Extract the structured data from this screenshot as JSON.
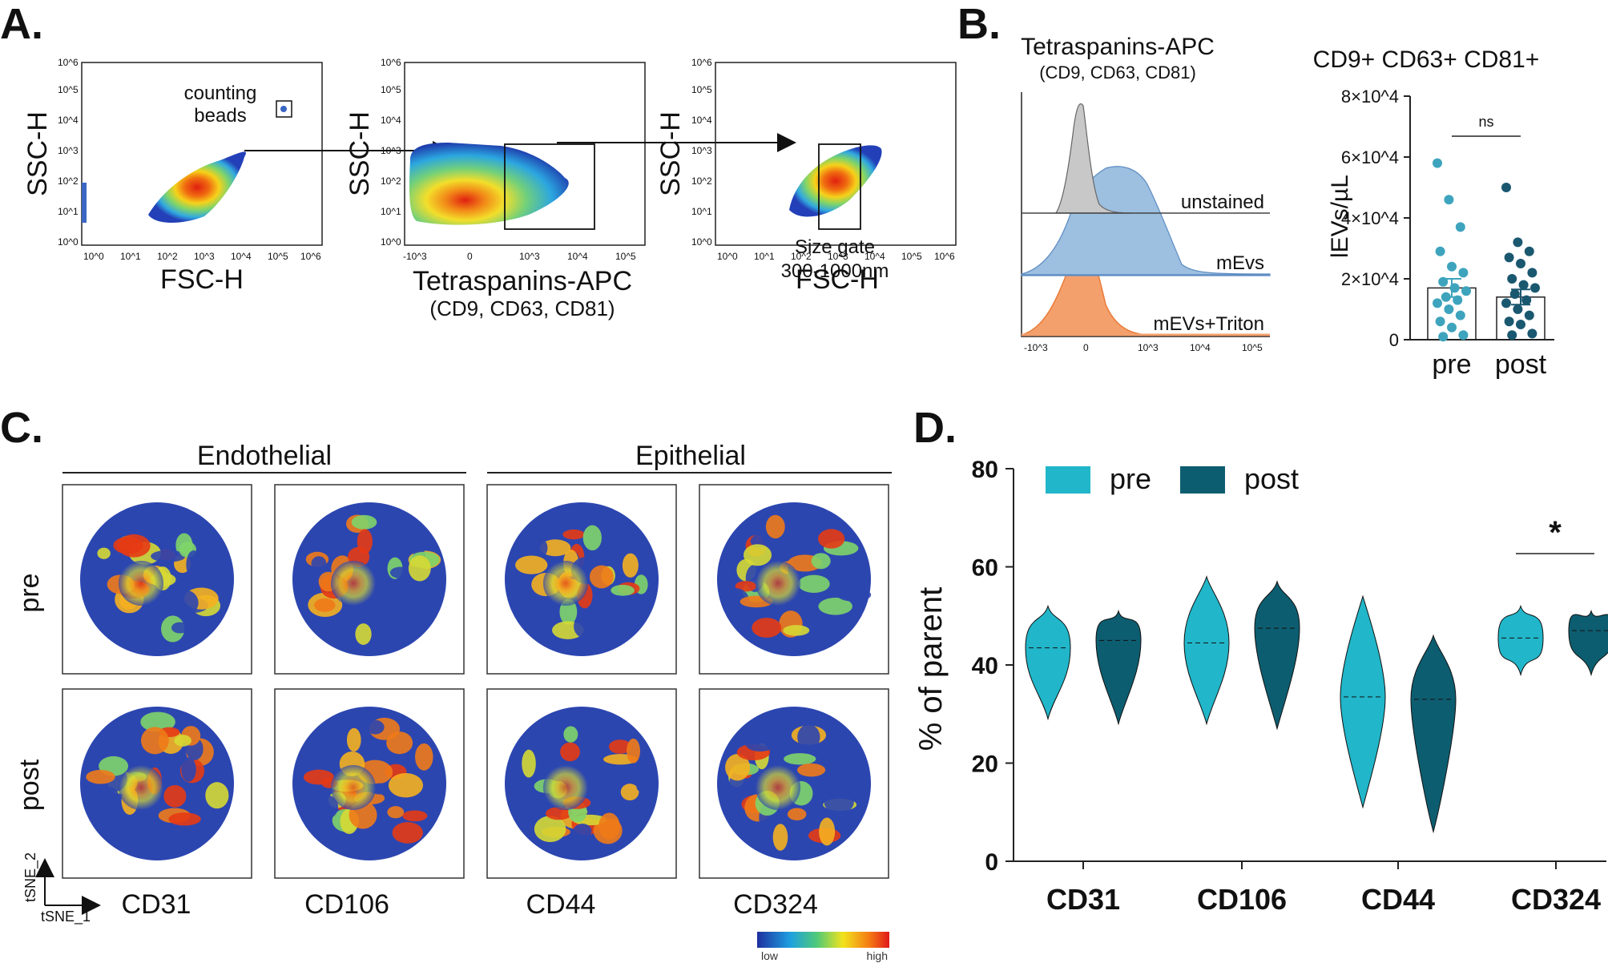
{
  "panels": {
    "A": {
      "letter": "A.",
      "plot1": {
        "xlabel": "FSC-H",
        "ylabel": "SSC-H",
        "annotation": [
          "counting",
          "beads"
        ]
      },
      "plot2": {
        "xlabel": "Tetraspanins-APC",
        "xlabel_sub": "(CD9, CD63, CD81)",
        "ylabel": "SSC-H"
      },
      "plot3": {
        "xlabel": "FSC-H",
        "ylabel": "SSC-H",
        "annotation": [
          "Size gate",
          "300-1000nm"
        ]
      },
      "log_ticks": [
        "10^0",
        "10^1",
        "10^2",
        "10^3",
        "10^4",
        "10^5",
        "10^6"
      ],
      "apc_ticks": [
        "-10^3",
        "0",
        "10^3",
        "10^4",
        "10^5"
      ]
    },
    "B": {
      "letter": "B.",
      "hist_title": "Tetraspanins-APC",
      "hist_sub": "(CD9, CD63, CD81)",
      "hist_labels": [
        "unstained",
        "mEvs",
        "mEVs+Triton"
      ],
      "hist_ticks": [
        "-10^3",
        "0",
        "10^3",
        "10^4",
        "10^5"
      ],
      "bar_title": "CD9+ CD63+ CD81+",
      "bar_ylabel": "lEVs/µL",
      "bar_yticks": [
        "0",
        "2×10^4",
        "4×10^4",
        "6×10^4",
        "8×10^4"
      ],
      "bar_sig": "ns"
    },
    "C": {
      "letter": "C.",
      "group_labels": [
        "Endothelial",
        "Epithelial"
      ],
      "row_labels": [
        "pre",
        "post"
      ],
      "markers": [
        "CD31",
        "CD106",
        "CD44",
        "CD324"
      ],
      "tsne_x": "tSNE_1",
      "tsne_y": "tSNE_2",
      "scale_low": "low",
      "scale_high": "high"
    },
    "D": {
      "letter": "D.",
      "ylabel": "% of parent",
      "sig": "*"
    }
  },
  "chart_data": [
    {
      "type": "scatter",
      "title": "",
      "xlabel": "FSC-H",
      "ylabel": "SSC-H",
      "xscale": "log",
      "xlim": [
        1,
        1000000
      ],
      "ylim": [
        1,
        1000000
      ],
      "gate": "counting beads",
      "gate_range_x": [
        50000,
        150000
      ],
      "gate_range_y": [
        200000,
        600000
      ]
    },
    {
      "type": "scatter",
      "xlabel": "Tetraspanins-APC (CD9, CD63, CD81)",
      "ylabel": "SSC-H",
      "gate_range_x": [
        600,
        50000
      ],
      "gate_range_y": [
        150,
        12000
      ]
    },
    {
      "type": "scatter",
      "xlabel": "FSC-H",
      "ylabel": "SSC-H",
      "gate": "Size gate 300-1000nm",
      "gate_range_x": [
        300,
        2000
      ],
      "gate_range_y": [
        150,
        12000
      ]
    },
    {
      "type": "area",
      "title": "Tetraspanins-APC (CD9, CD63, CD81)",
      "series": [
        {
          "name": "unstained",
          "color": "#c8c8c8",
          "peak": 0
        },
        {
          "name": "mEvs",
          "color": "#9dbfe0",
          "peak": 300
        },
        {
          "name": "mEVs+Triton",
          "color": "#f4a06c",
          "peak": 50
        }
      ]
    },
    {
      "type": "bar",
      "title": "CD9+ CD63+ CD81+",
      "ylabel": "lEVs/µL",
      "categories": [
        "pre",
        "post"
      ],
      "values": [
        17000,
        14000
      ],
      "sem": [
        3000,
        2500
      ],
      "ylim": [
        0,
        80000
      ],
      "colors": [
        "#3ea4bd",
        "#1a5870"
      ],
      "points": {
        "pre": [
          58000,
          46000,
          37000,
          29000,
          24000,
          22000,
          19000,
          17000,
          16000,
          14000,
          13000,
          12000,
          10000,
          8000,
          6000,
          4000,
          1500,
          1000
        ],
        "post": [
          50000,
          32000,
          29000,
          27000,
          25000,
          22000,
          20000,
          18000,
          17000,
          15000,
          13000,
          12000,
          10000,
          8000,
          6000,
          5000,
          2000,
          1500
        ]
      },
      "significance": "ns"
    },
    {
      "type": "heatmap",
      "title": "tSNE expression maps",
      "rows": [
        "pre",
        "post"
      ],
      "columns": [
        "CD31",
        "CD106",
        "CD44",
        "CD324"
      ],
      "groups": {
        "Endothelial": [
          "CD31",
          "CD106"
        ],
        "Epithelial": [
          "CD44",
          "CD324"
        ]
      },
      "colorscale": [
        "low",
        "high"
      ]
    },
    {
      "type": "violin",
      "categories": [
        "CD31",
        "CD106",
        "CD44",
        "CD324"
      ],
      "ylabel": "% of parent",
      "ylim": [
        0,
        80
      ],
      "yticks": [
        0,
        20,
        40,
        60,
        80
      ],
      "legend": {
        "position": "top-left"
      },
      "series": [
        {
          "name": "pre",
          "color": "#21b6c9",
          "min": [
            29,
            28,
            11,
            38
          ],
          "max": [
            52,
            58,
            54,
            52
          ],
          "median": [
            43.5,
            44.5,
            33.5,
            45.5
          ]
        },
        {
          "name": "post",
          "color": "#0d5d70",
          "min": [
            28,
            27,
            6,
            38
          ],
          "max": [
            51,
            57,
            46,
            51
          ],
          "median": [
            45,
            47.5,
            33,
            47
          ]
        }
      ],
      "significance": [
        {
          "category": "CD324",
          "label": "*"
        }
      ]
    }
  ]
}
